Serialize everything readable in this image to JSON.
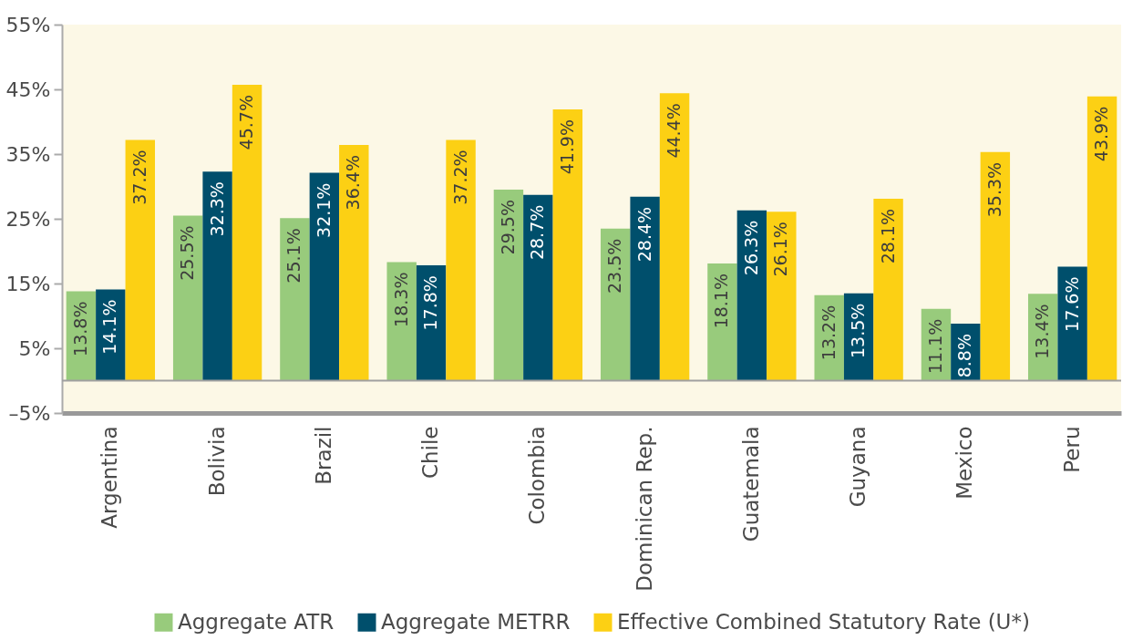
{
  "chart_data": {
    "type": "bar",
    "categories": [
      "Argentina",
      "Bolivia",
      "Brazil",
      "Chile",
      "Colombia",
      "Dominican Rep.",
      "Guatemala",
      "Guyana",
      "Mexico",
      "Peru"
    ],
    "series": [
      {
        "name": "Aggregate ATR",
        "color": "#98cb7c",
        "values": [
          13.8,
          25.5,
          25.1,
          18.3,
          29.5,
          23.5,
          18.1,
          13.2,
          11.1,
          13.4
        ],
        "value_labels": [
          "13.8%",
          "25.5%",
          "25.1%",
          "18.3%",
          "29.5%",
          "23.5%",
          "18.1%",
          "13.2%",
          "11.1%",
          "13.4%"
        ]
      },
      {
        "name": "Aggregate METRR",
        "color": "#004f6c",
        "values": [
          14.1,
          32.3,
          32.1,
          17.8,
          28.7,
          28.4,
          26.3,
          13.5,
          8.8,
          17.6
        ],
        "value_labels": [
          "14.1%",
          "32.3%",
          "32.1%",
          "17.8%",
          "28.7%",
          "28.4%",
          "26.3%",
          "13.5%",
          "8.8%",
          "17.6%"
        ]
      },
      {
        "name": "Effective Combined Statutory Rate (U*)",
        "color": "#fcd014",
        "values": [
          37.2,
          45.7,
          36.4,
          37.2,
          41.9,
          44.4,
          26.1,
          28.1,
          35.3,
          43.9
        ],
        "value_labels": [
          "37.2%",
          "45.7%",
          "36.4%",
          "37.2%",
          "41.9%",
          "44.4%",
          "26.1%",
          "28.1%",
          "35.3%",
          "43.9%"
        ]
      }
    ],
    "ylim": [
      -5,
      55
    ],
    "yticks": [
      {
        "value": -5,
        "label": "–5%"
      },
      {
        "value": 5,
        "label": "5%"
      },
      {
        "value": 15,
        "label": "15%"
      },
      {
        "value": 25,
        "label": "25%"
      },
      {
        "value": 35,
        "label": "35%"
      },
      {
        "value": 45,
        "label": "45%"
      },
      {
        "value": 55,
        "label": "55%"
      }
    ],
    "ref_lines": [
      {
        "axis": "y",
        "value": 0,
        "color": "#a0a0a0"
      }
    ],
    "legend": "bottom"
  }
}
